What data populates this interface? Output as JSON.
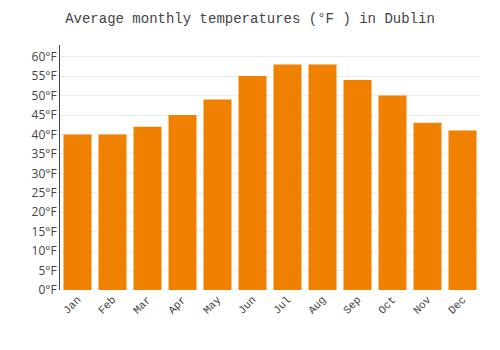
{
  "chart_data": {
    "type": "bar",
    "title": "Average monthly temperatures (°F ) in Dublin",
    "categories": [
      "Jan",
      "Feb",
      "Mar",
      "Apr",
      "May",
      "Jun",
      "Jul",
      "Aug",
      "Sep",
      "Oct",
      "Nov",
      "Dec"
    ],
    "values": [
      40,
      40,
      42,
      45,
      49,
      55,
      58,
      58,
      54,
      50,
      43,
      41
    ],
    "color": "#F08000",
    "ylim": [
      0,
      63
    ],
    "yticks": [
      {
        "value": 0,
        "label": "0°F"
      },
      {
        "value": 5,
        "label": "5°F"
      },
      {
        "value": 10,
        "label": "10°F"
      },
      {
        "value": 15,
        "label": "15°F"
      },
      {
        "value": 20,
        "label": "20°F"
      },
      {
        "value": 25,
        "label": "25°F"
      },
      {
        "value": 30,
        "label": "30°F"
      },
      {
        "value": 35,
        "label": "35°F"
      },
      {
        "value": 40,
        "label": "40°F"
      },
      {
        "value": 45,
        "label": "45°F"
      },
      {
        "value": 50,
        "label": "50°F"
      },
      {
        "value": 55,
        "label": "55°F"
      },
      {
        "value": 60,
        "label": "60°F"
      }
    ],
    "grid": true
  }
}
